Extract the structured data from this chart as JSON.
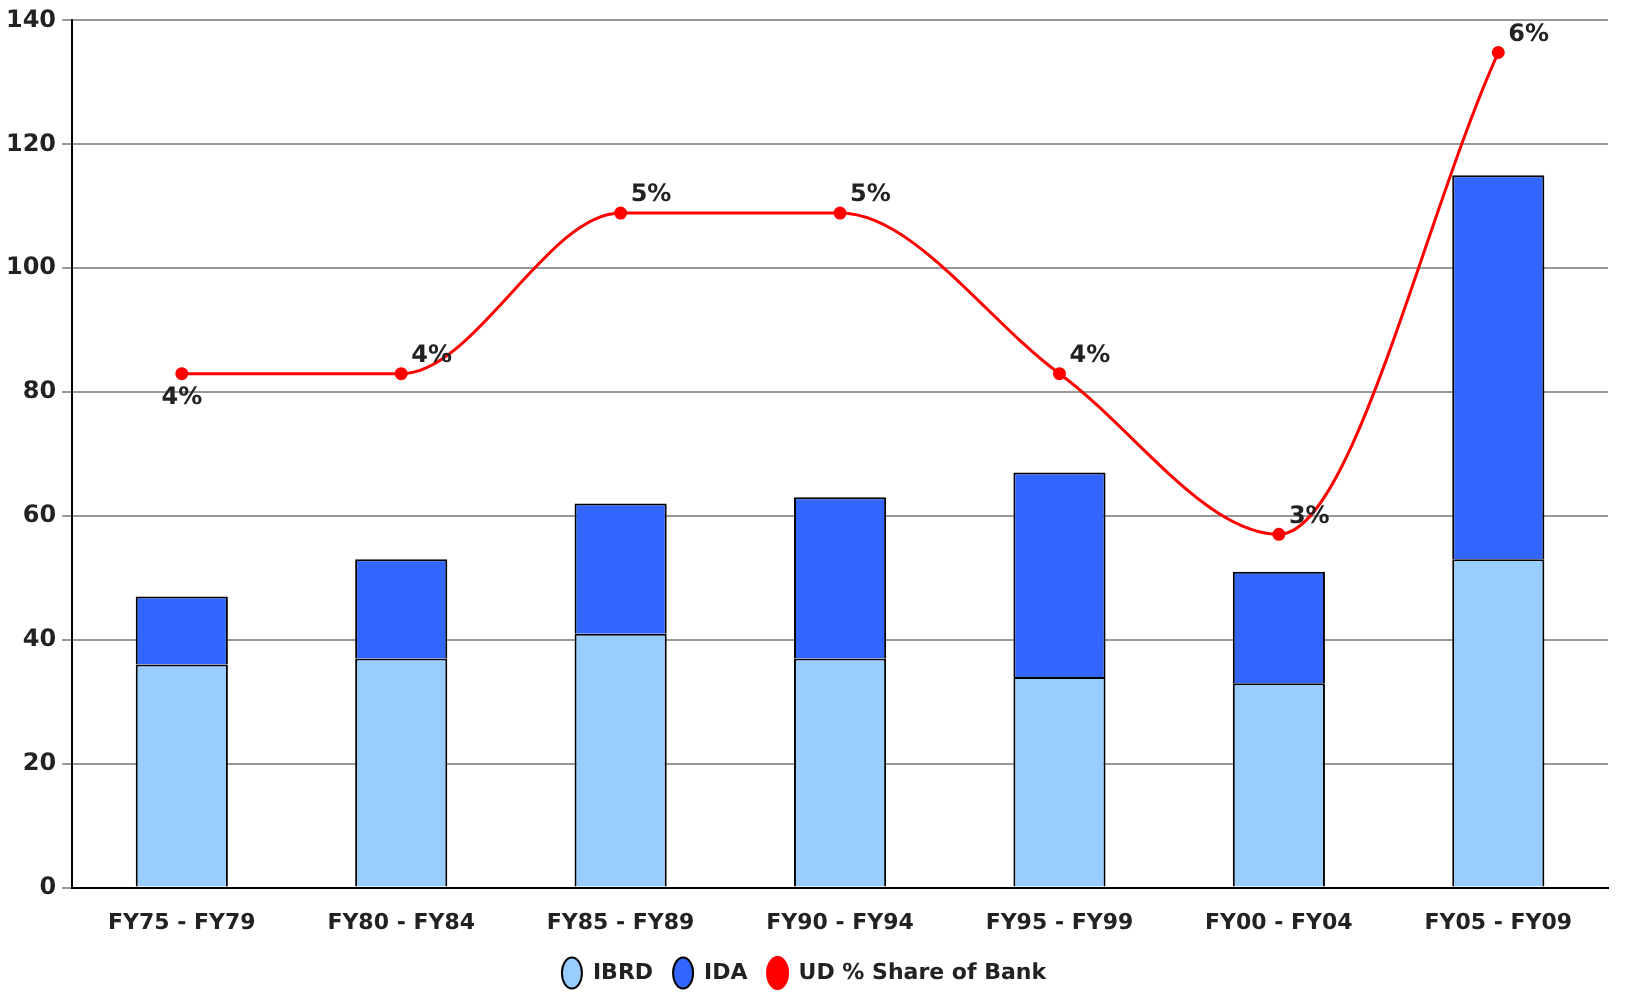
{
  "chart_data": {
    "type": "bar",
    "stacked": true,
    "categories": [
      "FY75 - FY79",
      "FY80 - FY84",
      "FY85 - FY89",
      "FY90 - FY94",
      "FY95 - FY99",
      "FY00 - FY04",
      "FY05 - FY09"
    ],
    "series": [
      {
        "name": "IBRD",
        "color": "#99ccff",
        "values": [
          36,
          37,
          41,
          37,
          34,
          33,
          53
        ]
      },
      {
        "name": "IDA",
        "color": "#3366ff",
        "values": [
          11,
          16,
          21,
          26,
          33,
          18,
          62
        ]
      },
      {
        "name": "UD % Share of Bank",
        "type": "line",
        "axis": "y2",
        "color": "#ff0000",
        "marker": "circle",
        "line_style": "solid",
        "values": [
          4,
          4,
          5,
          5,
          4,
          3,
          6
        ],
        "value_labels": [
          "4%",
          "4%",
          "5%",
          "5%",
          "4%",
          "3%",
          "6%"
        ]
      }
    ],
    "y2lim": [
      0.8,
      6.2
    ],
    "ylim": [
      0,
      140
    ],
    "yticks": [
      0,
      20,
      40,
      60,
      80,
      100,
      120,
      140
    ],
    "grid": "y",
    "legend": "bottom"
  }
}
